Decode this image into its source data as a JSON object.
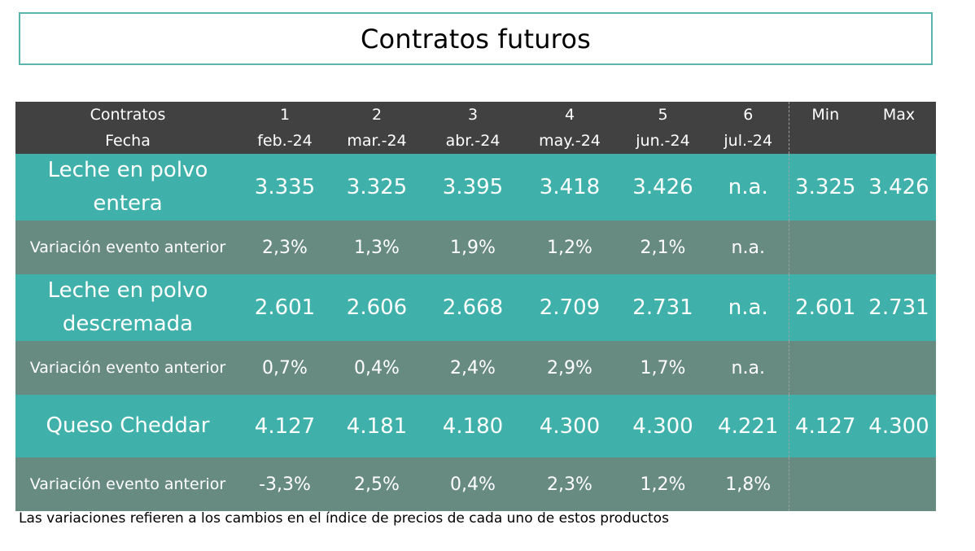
{
  "title": "Contratos futuros",
  "header": {
    "row_label_top": "Contratos",
    "row_label_bottom": "Fecha",
    "contracts": [
      {
        "num": "1",
        "date": "feb.-24"
      },
      {
        "num": "2",
        "date": "mar.-24"
      },
      {
        "num": "3",
        "date": "abr.-24"
      },
      {
        "num": "4",
        "date": "may.-24"
      },
      {
        "num": "5",
        "date": "jun.-24"
      },
      {
        "num": "6",
        "date": "jul.-24"
      }
    ],
    "min": "Min",
    "max": "Max"
  },
  "rows": [
    {
      "label": "Leche en polvo entera",
      "values": [
        "3.335",
        "3.325",
        "3.395",
        "3.418",
        "3.426",
        "n.a."
      ],
      "min": "3.325",
      "max": "3.426"
    },
    {
      "label": "Variación evento anterior",
      "values": [
        "2,3%",
        "1,3%",
        "1,9%",
        "1,2%",
        "2,1%",
        "n.a."
      ],
      "min": "",
      "max": ""
    },
    {
      "label": "Leche en polvo descremada",
      "values": [
        "2.601",
        "2.606",
        "2.668",
        "2.709",
        "2.731",
        "n.a."
      ],
      "min": "2.601",
      "max": "2.731"
    },
    {
      "label": "Variación evento anterior",
      "values": [
        "0,7%",
        "0,4%",
        "2,4%",
        "2,9%",
        "1,7%",
        "n.a."
      ],
      "min": "",
      "max": ""
    },
    {
      "label": "Queso Cheddar",
      "values": [
        "4.127",
        "4.181",
        "4.180",
        "4.300",
        "4.300",
        "4.221"
      ],
      "min": "4.127",
      "max": "4.300"
    },
    {
      "label": "Variación evento anterior",
      "values": [
        "-3,3%",
        "2,5%",
        "0,4%",
        "2,3%",
        "1,2%",
        "1,8%"
      ],
      "min": "",
      "max": ""
    }
  ],
  "note": "Las variaciones refieren a los cambios en el índice de precios de cada uno de estos productos",
  "colors": {
    "header_bg": "#414141",
    "product_row_bg": "#3fb1aa",
    "variation_row_bg": "#688b81",
    "title_border": "#5cb4ad"
  }
}
